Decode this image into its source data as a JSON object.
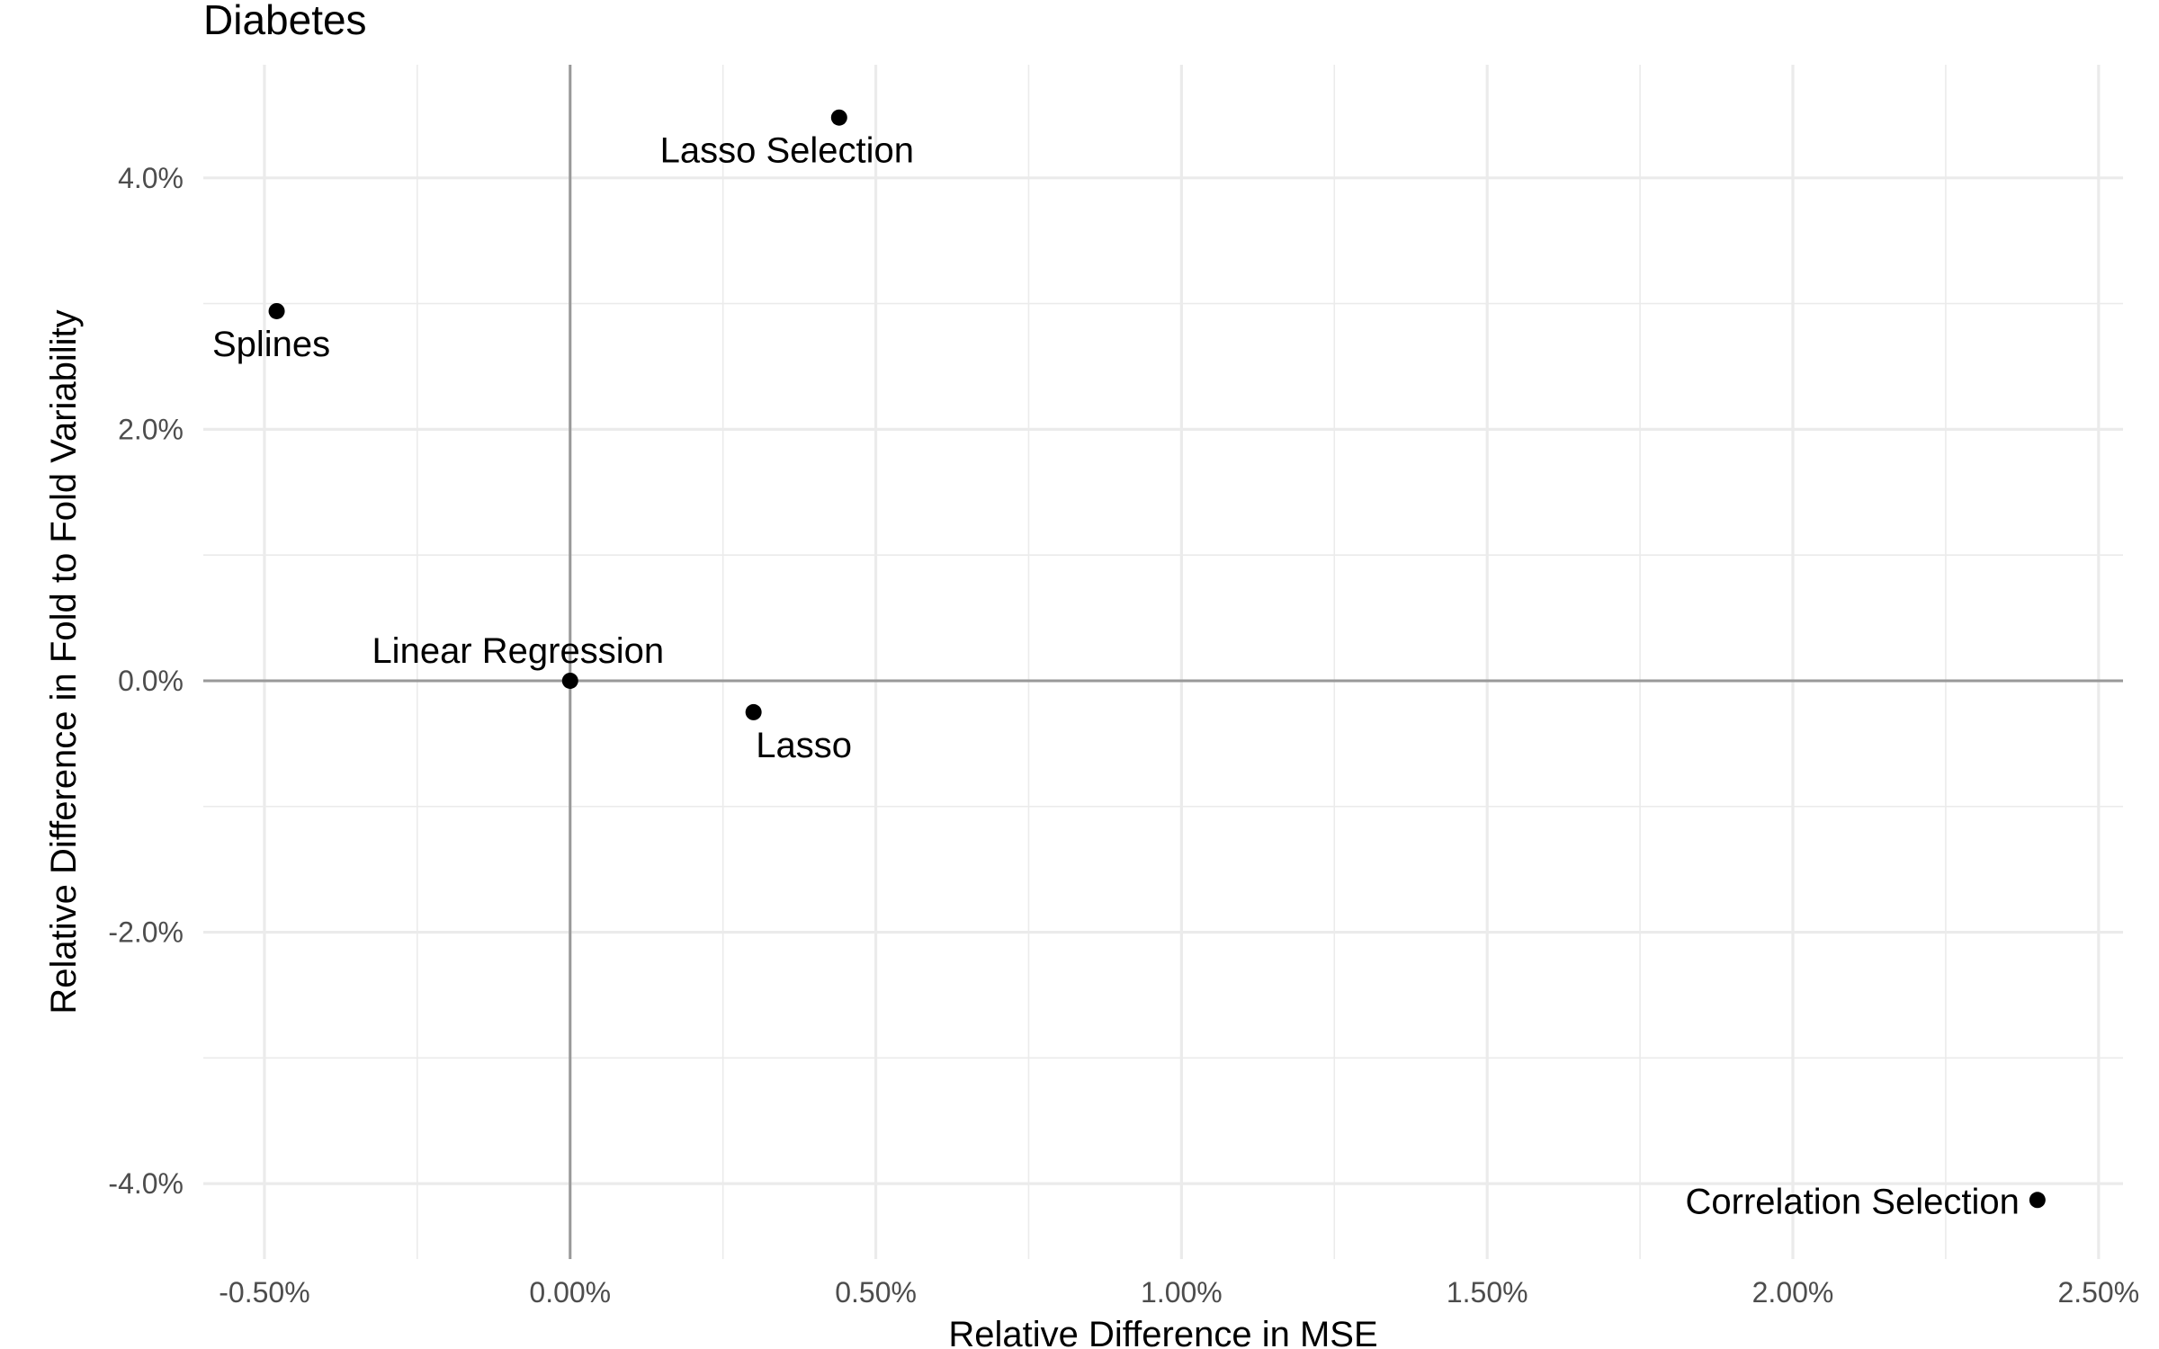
{
  "chart_data": {
    "type": "scatter",
    "title": "Diabetes",
    "xlabel": "Relative Difference in MSE",
    "ylabel": "Relative Difference in Fold to Fold Variability",
    "xlim": [
      -0.6,
      2.54
    ],
    "ylim": [
      -4.6,
      4.9
    ],
    "x_ticks": [
      -0.5,
      0.0,
      0.5,
      1.0,
      1.5,
      2.0,
      2.5
    ],
    "x_tick_labels": [
      "-0.50%",
      "0.00%",
      "0.50%",
      "1.00%",
      "1.50%",
      "2.00%",
      "2.50%"
    ],
    "y_ticks": [
      -4.0,
      -2.0,
      0.0,
      2.0,
      4.0
    ],
    "y_tick_labels": [
      "-4.0%",
      "-2.0%",
      "0.0%",
      "2.0%",
      "4.0%"
    ],
    "grid": true,
    "reference_lines": {
      "x": 0,
      "y": 0
    },
    "points": [
      {
        "label": "Lasso Selection",
        "x": 0.44,
        "y": 4.48,
        "label_pos": "below"
      },
      {
        "label": "Splines",
        "x": -0.48,
        "y": 2.94,
        "label_pos": "below"
      },
      {
        "label": "Linear Regression",
        "x": 0.0,
        "y": 0.0,
        "label_pos": "above"
      },
      {
        "label": "Lasso",
        "x": 0.3,
        "y": -0.25,
        "label_pos": "below"
      },
      {
        "label": "Correlation Selection",
        "x": 2.4,
        "y": -4.13,
        "label_pos": "left"
      }
    ]
  }
}
